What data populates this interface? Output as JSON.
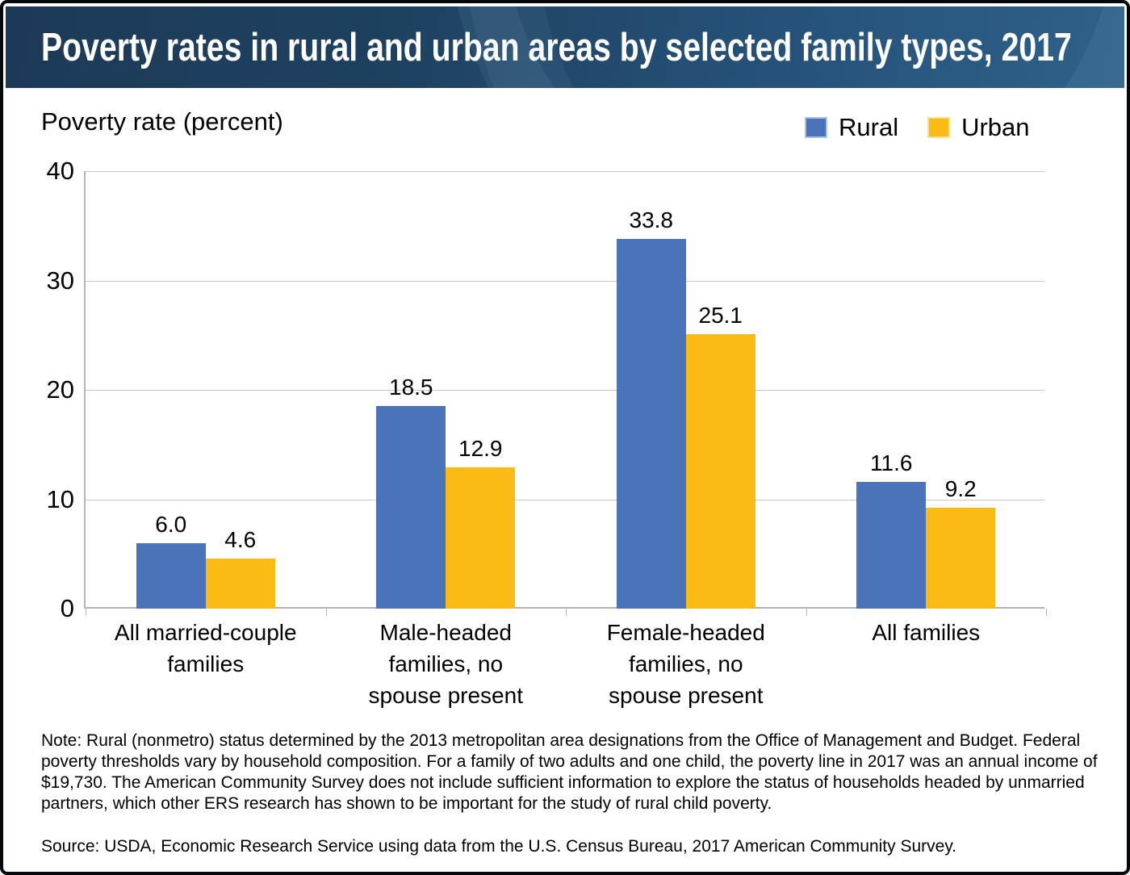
{
  "header": {
    "title": "Poverty rates in rural and urban areas by selected family types, 2017"
  },
  "chart_data": {
    "type": "bar",
    "title": "Poverty rates in rural and urban areas by selected family types, 2017",
    "axis_unit_label": "Poverty rate (percent)",
    "categories": [
      "All married-couple families",
      "Male-headed families, no spouse present",
      "Female-headed families, no spouse present",
      "All families"
    ],
    "category_label_lines": [
      [
        "All married-couple",
        "families"
      ],
      [
        "Male-headed",
        "families, no",
        "spouse present"
      ],
      [
        "Female-headed",
        "families, no",
        "spouse present"
      ],
      [
        "All families"
      ]
    ],
    "series": [
      {
        "name": "Rural",
        "color": "#4B73B9",
        "values": [
          6.0,
          18.5,
          33.8,
          11.6
        ]
      },
      {
        "name": "Urban",
        "color": "#FCBB14",
        "values": [
          4.6,
          12.9,
          25.1,
          9.2
        ]
      }
    ],
    "ylabel": "Poverty rate (percent)",
    "xlabel": "",
    "ylim": [
      0,
      40
    ],
    "yticks": [
      0,
      10,
      20,
      30,
      40
    ],
    "grid": true,
    "legend_position": "top-right",
    "value_label_decimals": 1
  },
  "footer": {
    "note": "Note: Rural (nonmetro) status determined by the 2013 metropolitan area designations from the Office of Management and Budget. Federal poverty thresholds vary by household composition. For a family of two adults and one child, the poverty line in 2017 was an annual income of $19,730. The American Community Survey does not include sufficient information to explore the status of households headed by unmarried partners, which other ERS research has shown to be important for the study of rural child poverty.",
    "source": "Source: USDA, Economic Research Service using data from the U.S. Census Bureau, 2017 American Community Survey."
  }
}
